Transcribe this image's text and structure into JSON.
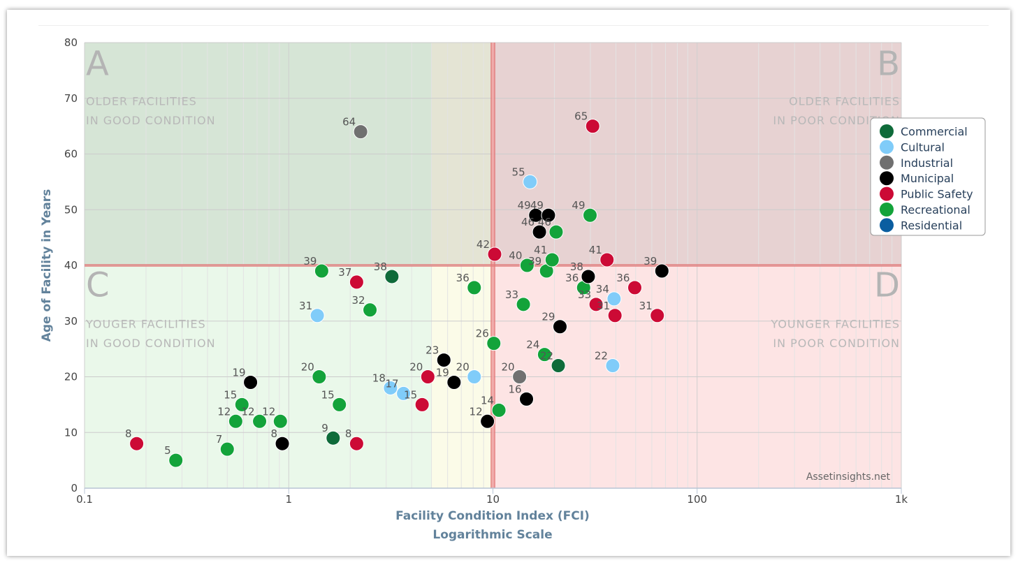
{
  "chart_data": {
    "type": "scatter",
    "xscale": "log",
    "xlim": [
      0.1,
      1000
    ],
    "ylim": [
      0,
      80
    ],
    "xticks": [
      {
        "value": 0.1,
        "label": "0.1"
      },
      {
        "value": 1,
        "label": "1"
      },
      {
        "value": 10,
        "label": "10"
      },
      {
        "value": 100,
        "label": "100"
      },
      {
        "value": 1000,
        "label": "1k"
      }
    ],
    "yticks": [
      0,
      10,
      20,
      30,
      40,
      50,
      60,
      70,
      80
    ],
    "xlabel": "Facility Condition Index (FCI)",
    "xlabel2": "Logarithmic Scale",
    "ylabel": "Age of Facility in Years",
    "credit": "Assetinsights.net",
    "grid": true,
    "legend_position": "right",
    "quadrants": [
      {
        "letter": "A",
        "line1": "OLDER FACILITIES",
        "line2": "IN GOOD CONDITION"
      },
      {
        "letter": "B",
        "line1": "OLDER FACILITIES",
        "line2": "IN POOR CONDITION"
      },
      {
        "letter": "C",
        "line1": "YOUGER FACILITIES",
        "line2": "IN GOOD CONDITION"
      },
      {
        "letter": "D",
        "line1": "YOUNGER FACILITIES",
        "line2": "IN POOR CONDITION"
      }
    ],
    "series": [
      {
        "name": "Commercial",
        "color": "#0f6b3a",
        "points": [
          [
            3.2,
            38
          ],
          [
            1.65,
            9
          ],
          [
            20.9,
            22
          ]
        ]
      },
      {
        "name": "Cultural",
        "color": "#80ccf9",
        "points": [
          [
            1.38,
            31
          ],
          [
            3.15,
            18
          ],
          [
            3.65,
            17
          ],
          [
            8.1,
            20
          ],
          [
            15.2,
            55
          ],
          [
            39.2,
            34
          ],
          [
            38.6,
            22
          ]
        ]
      },
      {
        "name": "Industrial",
        "color": "#707070",
        "points": [
          [
            2.25,
            64
          ],
          [
            13.5,
            20
          ]
        ]
      },
      {
        "name": "Municipal",
        "color": "#000000",
        "points": [
          [
            0.65,
            19
          ],
          [
            0.93,
            8
          ],
          [
            5.75,
            23
          ],
          [
            6.45,
            19
          ],
          [
            9.4,
            12
          ],
          [
            14.6,
            16
          ],
          [
            16.2,
            49
          ],
          [
            18.7,
            49
          ],
          [
            16.9,
            46
          ],
          [
            21.3,
            29
          ],
          [
            29.3,
            38
          ],
          [
            67.2,
            39
          ]
        ]
      },
      {
        "name": "Public Safety",
        "color": "#cc0a35",
        "points": [
          [
            0.18,
            8
          ],
          [
            2.15,
            37
          ],
          [
            2.15,
            8
          ],
          [
            4.5,
            15
          ],
          [
            4.8,
            20
          ],
          [
            10.2,
            42
          ],
          [
            30.8,
            65
          ],
          [
            36.2,
            41
          ],
          [
            32.0,
            33
          ],
          [
            39.6,
            31
          ],
          [
            49.5,
            36
          ],
          [
            63.8,
            31
          ]
        ]
      },
      {
        "name": "Recreational",
        "color": "#13a33a",
        "points": [
          [
            0.28,
            5
          ],
          [
            0.5,
            7
          ],
          [
            0.55,
            12
          ],
          [
            0.59,
            15
          ],
          [
            0.72,
            12
          ],
          [
            0.91,
            12
          ],
          [
            1.41,
            20
          ],
          [
            1.45,
            39
          ],
          [
            1.77,
            15
          ],
          [
            2.5,
            32
          ],
          [
            8.1,
            36
          ],
          [
            10.1,
            26
          ],
          [
            10.7,
            14
          ],
          [
            14.1,
            33
          ],
          [
            14.7,
            40
          ],
          [
            18.3,
            39
          ],
          [
            17.9,
            24
          ],
          [
            19.5,
            41
          ],
          [
            20.4,
            46
          ],
          [
            27.8,
            36
          ],
          [
            29.9,
            49
          ]
        ]
      },
      {
        "name": "Residential",
        "color": "#0b5ea0",
        "points": []
      }
    ]
  }
}
